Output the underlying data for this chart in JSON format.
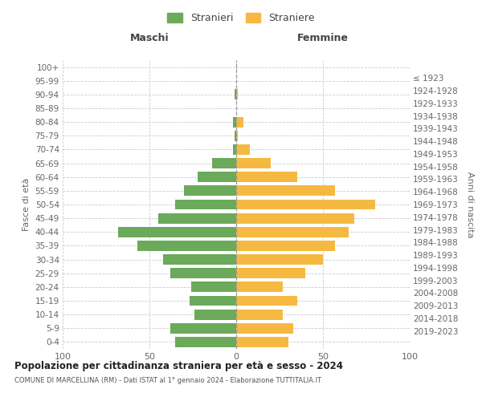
{
  "age_groups": [
    "0-4",
    "5-9",
    "10-14",
    "15-19",
    "20-24",
    "25-29",
    "30-34",
    "35-39",
    "40-44",
    "45-49",
    "50-54",
    "55-59",
    "60-64",
    "65-69",
    "70-74",
    "75-79",
    "80-84",
    "85-89",
    "90-94",
    "95-99",
    "100+"
  ],
  "birth_years": [
    "2019-2023",
    "2014-2018",
    "2009-2013",
    "2004-2008",
    "1999-2003",
    "1994-1998",
    "1989-1993",
    "1984-1988",
    "1979-1983",
    "1974-1978",
    "1969-1973",
    "1964-1968",
    "1959-1963",
    "1954-1958",
    "1949-1953",
    "1944-1948",
    "1939-1943",
    "1934-1938",
    "1929-1933",
    "1924-1928",
    "≤ 1923"
  ],
  "maschi": [
    35,
    38,
    24,
    27,
    26,
    38,
    42,
    57,
    68,
    45,
    35,
    30,
    22,
    14,
    2,
    1,
    2,
    0,
    1,
    0,
    0
  ],
  "femmine": [
    30,
    33,
    27,
    35,
    27,
    40,
    50,
    57,
    65,
    68,
    80,
    57,
    35,
    20,
    8,
    1,
    4,
    0,
    1,
    0,
    0
  ],
  "color_maschi": "#6aaa5a",
  "color_femmine": "#f5b942",
  "title": "Popolazione per cittadinanza straniera per età e sesso - 2024",
  "subtitle": "COMUNE DI MARCELLINA (RM) - Dati ISTAT al 1° gennaio 2024 - Elaborazione TUTTITALIA.IT",
  "ylabel_left": "Fasce di età",
  "ylabel_right": "Anni di nascita",
  "xlabel_left": "Maschi",
  "xlabel_right": "Femmine",
  "legend_maschi": "Stranieri",
  "legend_femmine": "Straniere",
  "xlim": 100,
  "background_color": "#ffffff",
  "grid_color": "#cccccc"
}
